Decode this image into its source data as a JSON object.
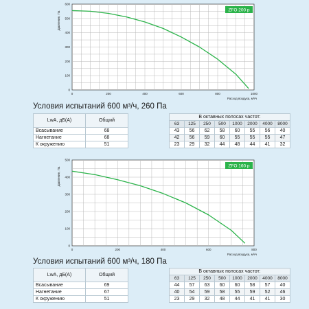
{
  "chart_data": [
    {
      "type": "line",
      "badge": "ZFO 200 p",
      "ylabel": "Давление, Па",
      "xlabel": "Расход воздуха, м³/ч",
      "xlim": [
        0,
        1000
      ],
      "ylim": [
        0,
        600
      ],
      "x_ticks": [
        "0",
        "200",
        "400",
        "600",
        "800",
        "1000"
      ],
      "y_ticks": [
        "0",
        "100",
        "200",
        "300",
        "400",
        "500",
        "600"
      ],
      "grid": true,
      "series": [
        {
          "x": [
            0,
            100,
            200,
            300,
            400,
            500,
            600,
            700,
            800,
            900,
            970
          ],
          "y": [
            555,
            550,
            535,
            510,
            475,
            430,
            370,
            300,
            215,
            110,
            10
          ],
          "color": "#2bb34a"
        }
      ]
    },
    {
      "type": "line",
      "badge": "ZFO 160 p",
      "ylabel": "Давление, Па",
      "xlabel": "Расход воздуха, м³/ч",
      "xlim": [
        0,
        800
      ],
      "ylim": [
        0,
        500
      ],
      "x_ticks": [
        "0",
        "200",
        "400",
        "600",
        "800"
      ],
      "y_ticks": [
        "0",
        "100",
        "200",
        "300",
        "400",
        "500"
      ],
      "grid": true,
      "series": [
        {
          "x": [
            0,
            100,
            200,
            300,
            400,
            500,
            600,
            700,
            760
          ],
          "y": [
            435,
            415,
            385,
            350,
            305,
            250,
            180,
            90,
            15
          ],
          "color": "#2bb34a"
        }
      ]
    }
  ],
  "tables": [
    {
      "condition": "Условия испытаний 600 м³/ч, 260 Па",
      "col_label": "LwA, дБ(A)",
      "total_label": "Общий",
      "octave_label": "В октавных полосах частот:",
      "freqs": [
        "63",
        "125",
        "250",
        "500",
        "1000",
        "2000",
        "4000",
        "8000"
      ],
      "rows": [
        {
          "name": "Всасывание",
          "total": "68",
          "values": [
            "43",
            "56",
            "62",
            "58",
            "60",
            "55",
            "56",
            "40"
          ]
        },
        {
          "name": "Нагнетание",
          "total": "68",
          "values": [
            "42",
            "56",
            "59",
            "60",
            "55",
            "55",
            "55",
            "47"
          ]
        },
        {
          "name": "К окружению",
          "total": "51",
          "values": [
            "23",
            "29",
            "32",
            "44",
            "48",
            "44",
            "41",
            "32"
          ]
        }
      ]
    },
    {
      "condition": "Условия испытаний 600 м³/ч, 180 Па",
      "col_label": "LwA, дБ(A)",
      "total_label": "Общий",
      "octave_label": "В октавных полосах частот:",
      "freqs": [
        "63",
        "125",
        "250",
        "500",
        "1000",
        "2000",
        "4000",
        "8000"
      ],
      "rows": [
        {
          "name": "Всасывание",
          "total": "69",
          "values": [
            "44",
            "57",
            "63",
            "60",
            "60",
            "58",
            "57",
            "40"
          ]
        },
        {
          "name": "Нагнетание",
          "total": "67",
          "values": [
            "40",
            "54",
            "59",
            "58",
            "55",
            "59",
            "52",
            "46"
          ]
        },
        {
          "name": "К окружению",
          "total": "51",
          "values": [
            "23",
            "29",
            "32",
            "48",
            "44",
            "41",
            "41",
            "30"
          ]
        }
      ]
    }
  ]
}
